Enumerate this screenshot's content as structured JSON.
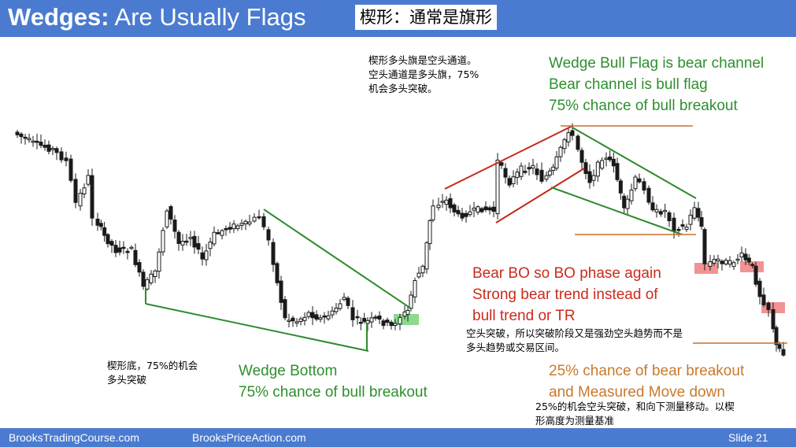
{
  "title": {
    "en_bold": "Wedges:",
    "en_rest": " Are Usually Flags",
    "cn": "楔形：通常是旗形"
  },
  "annotations": {
    "cn_top": [
      "楔形多头旗是空头通道。",
      "空头通道是多头旗，75%",
      "机会多头突破。"
    ],
    "bull_flag": [
      "Wedge Bull Flag is bear channel",
      "Bear channel is bull flag",
      "75% chance of bull breakout"
    ],
    "bear_bo": [
      "Bear BO so BO phase again",
      "Strong bear trend instead of",
      "bull trend or TR"
    ],
    "cn_bear_bo": [
      "空头突破，所以突破阶段又是强劲空头趋势而不是",
      "多头趋势或交易区间。"
    ],
    "cn_bottom": [
      "楔形底，75%的机会",
      "多头突破"
    ],
    "wedge_bottom": [
      "Wedge Bottom",
      "75% chance of bull breakout"
    ],
    "bear_breakout": [
      "25% chance of bear breakout",
      "and Measured Move down"
    ],
    "cn_bear_breakout": [
      "25%的机会空头突破，和向下测量移动。以楔",
      "形高度为测量基准"
    ]
  },
  "footer": {
    "left": "BrooksTradingCourse.com",
    "center": "BrooksPriceAction.com",
    "slide": "Slide  21"
  },
  "colors": {
    "header": "#4a7bd0",
    "green_text": "#2f8f2f",
    "red_text": "#cc2a1c",
    "orange_text": "#c97a2c",
    "candle": "#1a1a1a",
    "trend_green": "#2e8b2e",
    "trend_red": "#c4261a",
    "level_orange": "#c8702c",
    "highlight_red": "#f08080",
    "highlight_green": "#7fd67f"
  }
}
